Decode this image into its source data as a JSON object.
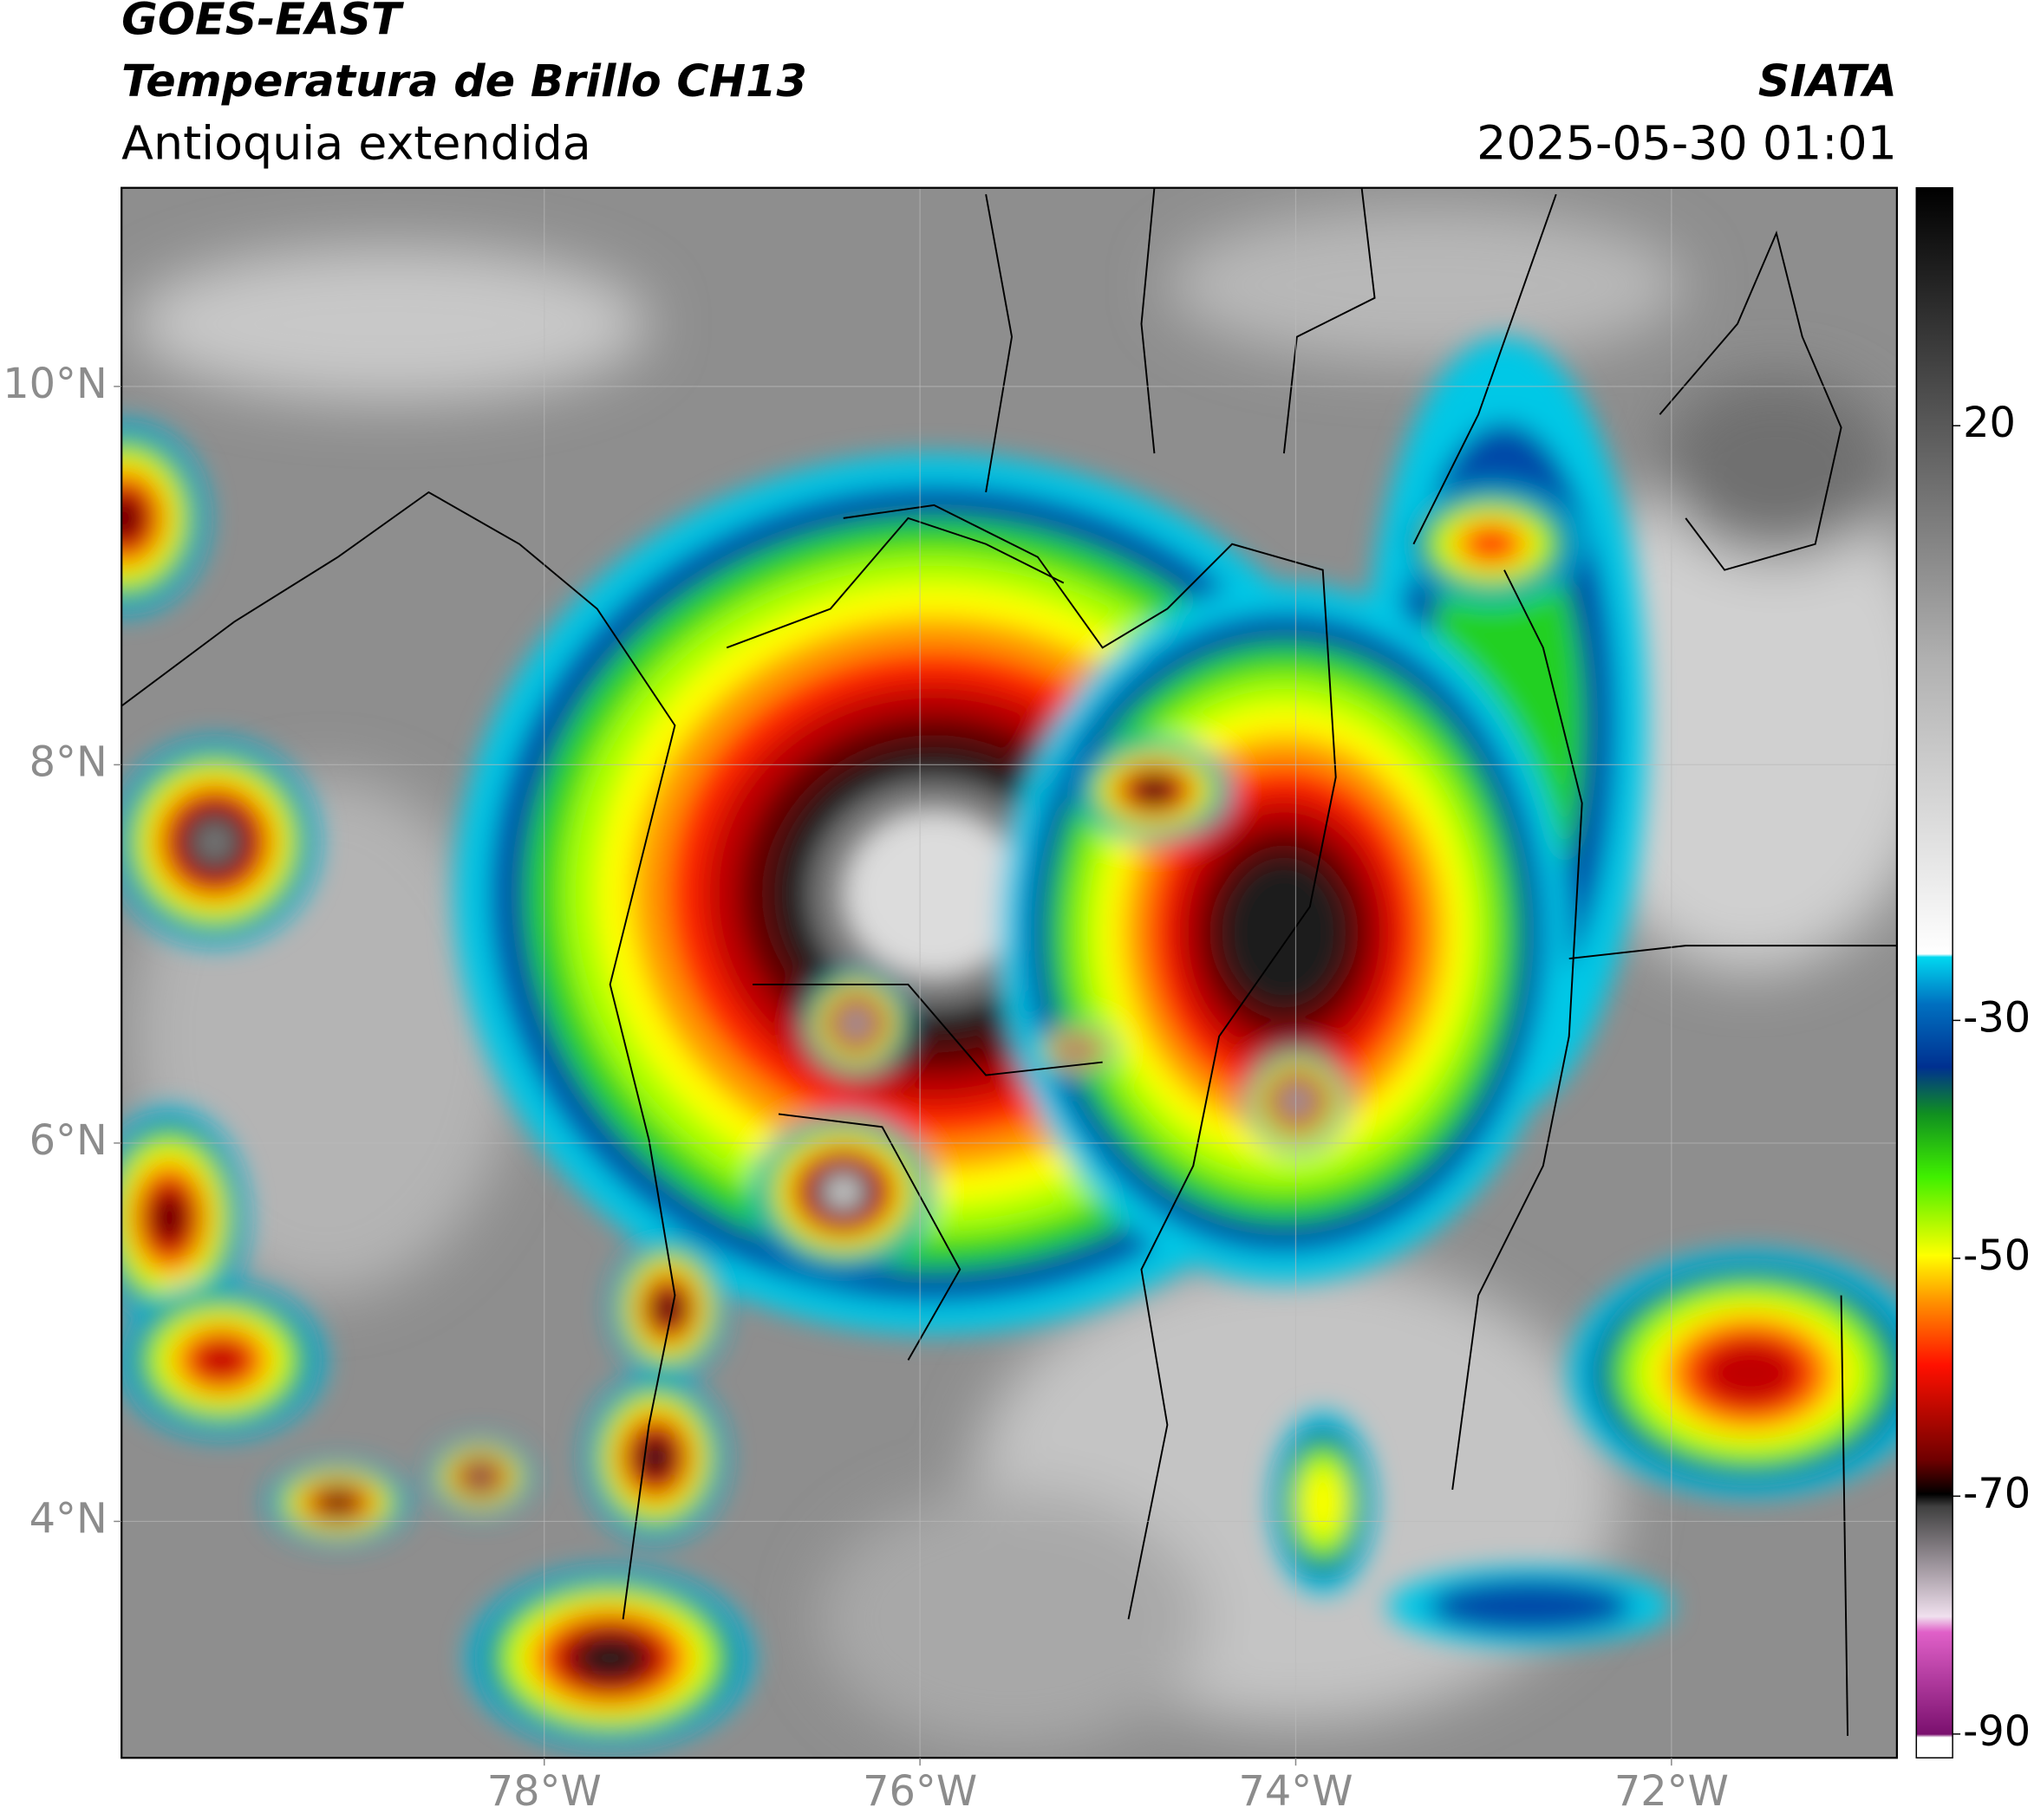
{
  "header": {
    "title": "GOES-EAST",
    "subtitle": "Temperatura de Brillo CH13",
    "region": "Antioquia extendida",
    "source": "SIATA",
    "datetime": "2025-05-30 01:01"
  },
  "map": {
    "xlim": [
      -80.25,
      -70.8
    ],
    "ylim": [
      2.75,
      11.05
    ],
    "xticks": [
      {
        "value": -78,
        "label": "78°W"
      },
      {
        "value": -76,
        "label": "76°W"
      },
      {
        "value": -74,
        "label": "74°W"
      },
      {
        "value": -72,
        "label": "72°W"
      }
    ],
    "yticks": [
      {
        "value": 4,
        "label": "4°N"
      },
      {
        "value": 6,
        "label": "6°N"
      },
      {
        "value": 8,
        "label": "8°N"
      },
      {
        "value": 10,
        "label": "10°N"
      }
    ],
    "grid": true
  },
  "colorbar": {
    "lim": [
      -92,
      40
    ],
    "ticks": [
      20,
      -30,
      -50,
      -70,
      -90
    ]
  }
}
